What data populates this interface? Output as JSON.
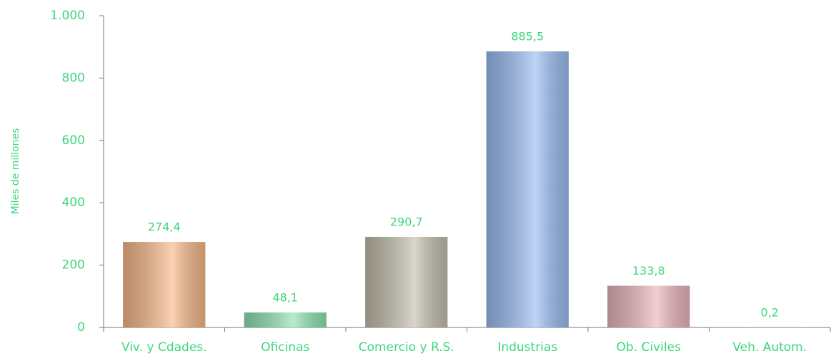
{
  "chart_data": {
    "type": "bar",
    "y_label": "Miles de millones",
    "categories": [
      "Viv. y Cdades.",
      "Oficinas",
      "Comercio  y R.S.",
      "Industrias",
      "Ob. Civiles",
      "Veh. Autom."
    ],
    "values": [
      274.4,
      48.1,
      290.7,
      885.5,
      133.8,
      0.2
    ],
    "value_labels": [
      "274,4",
      "48,1",
      "290,7",
      "885,5",
      "133,8",
      "0,2"
    ],
    "colors": [
      "#f7b98a",
      "#8fe3b3",
      "#c4bfae",
      "#9bbdf2",
      "#eab6bb",
      "#c9c9c9"
    ],
    "text_color": "#3fd67d",
    "ylim": [
      0,
      1000
    ],
    "yticks": [
      0,
      200,
      400,
      600,
      800,
      {
        "value": 1000,
        "label": "1.000"
      }
    ],
    "grid": false
  }
}
